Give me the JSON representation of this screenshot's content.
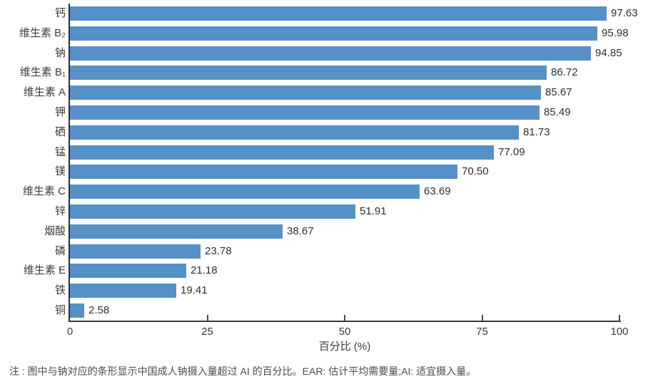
{
  "chart_data": {
    "type": "bar",
    "orientation": "horizontal",
    "title": "",
    "xlabel": "百分比 (%)",
    "ylabel": "",
    "xlim": [
      0,
      100
    ],
    "x_ticks": [
      0,
      25,
      50,
      75,
      100
    ],
    "grid": false,
    "legend": null,
    "bar_color": "#5590C6",
    "categories": [
      "钙",
      "维生素 B₂",
      "钠",
      "维生素 B₁",
      "维生素 A",
      "钾",
      "硒",
      "锰",
      "镁",
      "维生素 C",
      "锌",
      "烟酸",
      "磷",
      "维生素 E",
      "铁",
      "铜"
    ],
    "values": [
      97.63,
      95.98,
      94.85,
      86.72,
      85.67,
      85.49,
      81.73,
      77.09,
      70.5,
      63.69,
      51.91,
      38.67,
      23.78,
      21.18,
      19.41,
      2.58
    ],
    "value_labels": [
      "97.63",
      "95.98",
      "94.85",
      "86.72",
      "85.67",
      "85.49",
      "81.73",
      "77.09",
      "70.50",
      "63.69",
      "51.91",
      "38.67",
      "23.78",
      "21.18",
      "19.41",
      "2.58"
    ]
  },
  "footnote": "注 : 图中与钠对应的条形显示中国成人钠摄入量超过 AI 的百分比。EAR: 估计平均需要量;AI: 适宜摄入量。"
}
